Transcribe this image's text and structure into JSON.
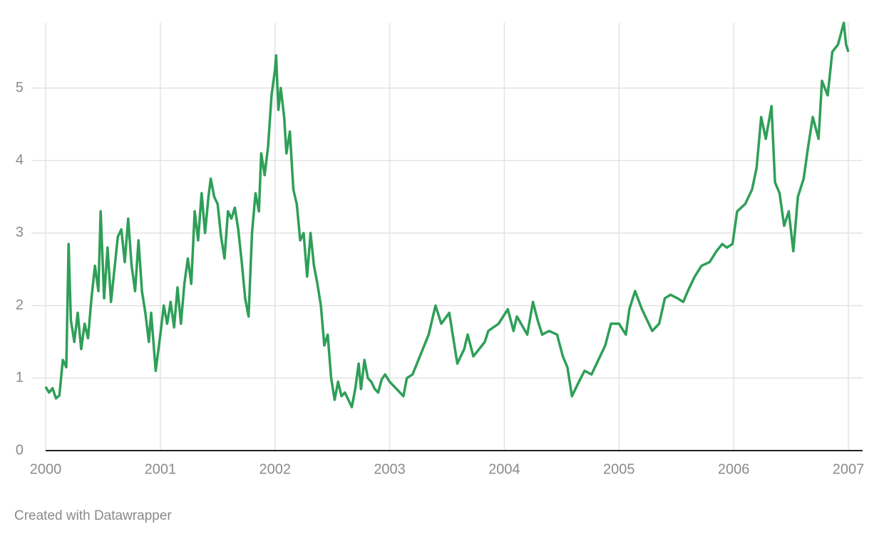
{
  "chart_data": {
    "type": "line",
    "credit": "Created with Datawrapper",
    "color": "#2e9f57",
    "xlim": [
      2000,
      2007
    ],
    "xticks": [
      2000,
      2001,
      2002,
      2003,
      2004,
      2005,
      2006,
      2007
    ],
    "ylim": [
      0,
      5.9
    ],
    "yticks": [
      0,
      1,
      2,
      3,
      4,
      5
    ],
    "grid": true,
    "x": [
      2000.0,
      2000.03,
      2000.06,
      2000.09,
      2000.12,
      2000.15,
      2000.18,
      2000.2,
      2000.22,
      2000.25,
      2000.28,
      2000.31,
      2000.34,
      2000.37,
      2000.4,
      2000.43,
      2000.46,
      2000.48,
      2000.51,
      2000.54,
      2000.57,
      2000.6,
      2000.63,
      2000.66,
      2000.69,
      2000.72,
      2000.75,
      2000.78,
      2000.81,
      2000.84,
      2000.87,
      2000.9,
      2000.92,
      2000.96,
      2001.0,
      2001.03,
      2001.06,
      2001.09,
      2001.12,
      2001.15,
      2001.18,
      2001.21,
      2001.24,
      2001.27,
      2001.3,
      2001.33,
      2001.36,
      2001.39,
      2001.42,
      2001.44,
      2001.47,
      2001.5,
      2001.53,
      2001.56,
      2001.59,
      2001.62,
      2001.65,
      2001.68,
      2001.71,
      2001.74,
      2001.77,
      2001.8,
      2001.83,
      2001.86,
      2001.88,
      2001.91,
      2001.94,
      2001.97,
      2002.0,
      2002.01,
      2002.03,
      2002.05,
      2002.08,
      2002.1,
      2002.13,
      2002.16,
      2002.19,
      2002.22,
      2002.25,
      2002.28,
      2002.31,
      2002.34,
      2002.37,
      2002.4,
      2002.43,
      2002.46,
      2002.49,
      2002.52,
      2002.55,
      2002.58,
      2002.61,
      2002.64,
      2002.67,
      2002.7,
      2002.73,
      2002.75,
      2002.78,
      2002.81,
      2002.84,
      2002.87,
      2002.9,
      2002.93,
      2002.96,
      2003.0,
      2003.12,
      2003.15,
      2003.2,
      2003.34,
      2003.4,
      2003.45,
      2003.52,
      2003.59,
      2003.65,
      2003.68,
      2003.73,
      2003.83,
      2003.86,
      2003.95,
      2004.03,
      2004.08,
      2004.11,
      2004.2,
      2004.25,
      2004.29,
      2004.33,
      2004.39,
      2004.46,
      2004.51,
      2004.55,
      2004.59,
      2004.65,
      2004.7,
      2004.76,
      2004.82,
      2004.88,
      2004.93,
      2005.0,
      2005.06,
      2005.09,
      2005.14,
      2005.2,
      2005.26,
      2005.29,
      2005.35,
      2005.4,
      2005.45,
      2005.51,
      2005.56,
      2005.6,
      2005.66,
      2005.72,
      2005.79,
      2005.85,
      2005.9,
      2005.94,
      2005.99,
      2006.03,
      2006.1,
      2006.16,
      2006.2,
      2006.24,
      2006.28,
      2006.33,
      2006.36,
      2006.4,
      2006.44,
      2006.48,
      2006.52,
      2006.56,
      2006.61,
      2006.65,
      2006.69,
      2006.74,
      2006.77,
      2006.82,
      2006.86,
      2006.91,
      2006.96,
      2006.98,
      2007.0
    ],
    "values": [
      0.88,
      0.8,
      0.86,
      0.72,
      0.76,
      1.25,
      1.15,
      2.85,
      1.8,
      1.5,
      1.9,
      1.4,
      1.75,
      1.55,
      2.1,
      2.55,
      2.2,
      3.3,
      2.1,
      2.8,
      2.05,
      2.5,
      2.95,
      3.05,
      2.6,
      3.2,
      2.55,
      2.2,
      2.9,
      2.2,
      1.9,
      1.5,
      1.9,
      1.1,
      1.6,
      2.0,
      1.75,
      2.05,
      1.7,
      2.25,
      1.75,
      2.3,
      2.65,
      2.3,
      3.3,
      2.9,
      3.55,
      3.0,
      3.5,
      3.75,
      3.5,
      3.4,
      2.95,
      2.65,
      3.3,
      3.2,
      3.35,
      3.05,
      2.6,
      2.1,
      1.85,
      3.0,
      3.55,
      3.3,
      4.1,
      3.8,
      4.2,
      4.9,
      5.25,
      5.45,
      4.7,
      5.0,
      4.6,
      4.1,
      4.4,
      3.6,
      3.4,
      2.9,
      3.0,
      2.4,
      3.0,
      2.55,
      2.3,
      2.0,
      1.45,
      1.6,
      1.0,
      0.7,
      0.95,
      0.75,
      0.8,
      0.7,
      0.6,
      0.85,
      1.2,
      0.85,
      1.25,
      1.0,
      0.95,
      0.85,
      0.8,
      0.98,
      1.05,
      0.95,
      0.75,
      1.0,
      1.05,
      1.6,
      2.0,
      1.75,
      1.9,
      1.2,
      1.4,
      1.6,
      1.3,
      1.5,
      1.65,
      1.75,
      1.95,
      1.65,
      1.85,
      1.6,
      2.05,
      1.8,
      1.6,
      1.65,
      1.6,
      1.3,
      1.15,
      0.75,
      0.95,
      1.1,
      1.05,
      1.25,
      1.45,
      1.75,
      1.75,
      1.6,
      1.95,
      2.2,
      1.95,
      1.75,
      1.65,
      1.75,
      2.1,
      2.15,
      2.1,
      2.05,
      2.2,
      2.4,
      2.55,
      2.6,
      2.75,
      2.85,
      2.8,
      2.85,
      3.3,
      3.4,
      3.6,
      3.9,
      4.6,
      4.3,
      4.75,
      3.7,
      3.55,
      3.1,
      3.3,
      2.75,
      3.5,
      3.75,
      4.2,
      4.6,
      4.3,
      5.1,
      4.9,
      5.5,
      5.6,
      5.9,
      5.6,
      5.5
    ]
  }
}
